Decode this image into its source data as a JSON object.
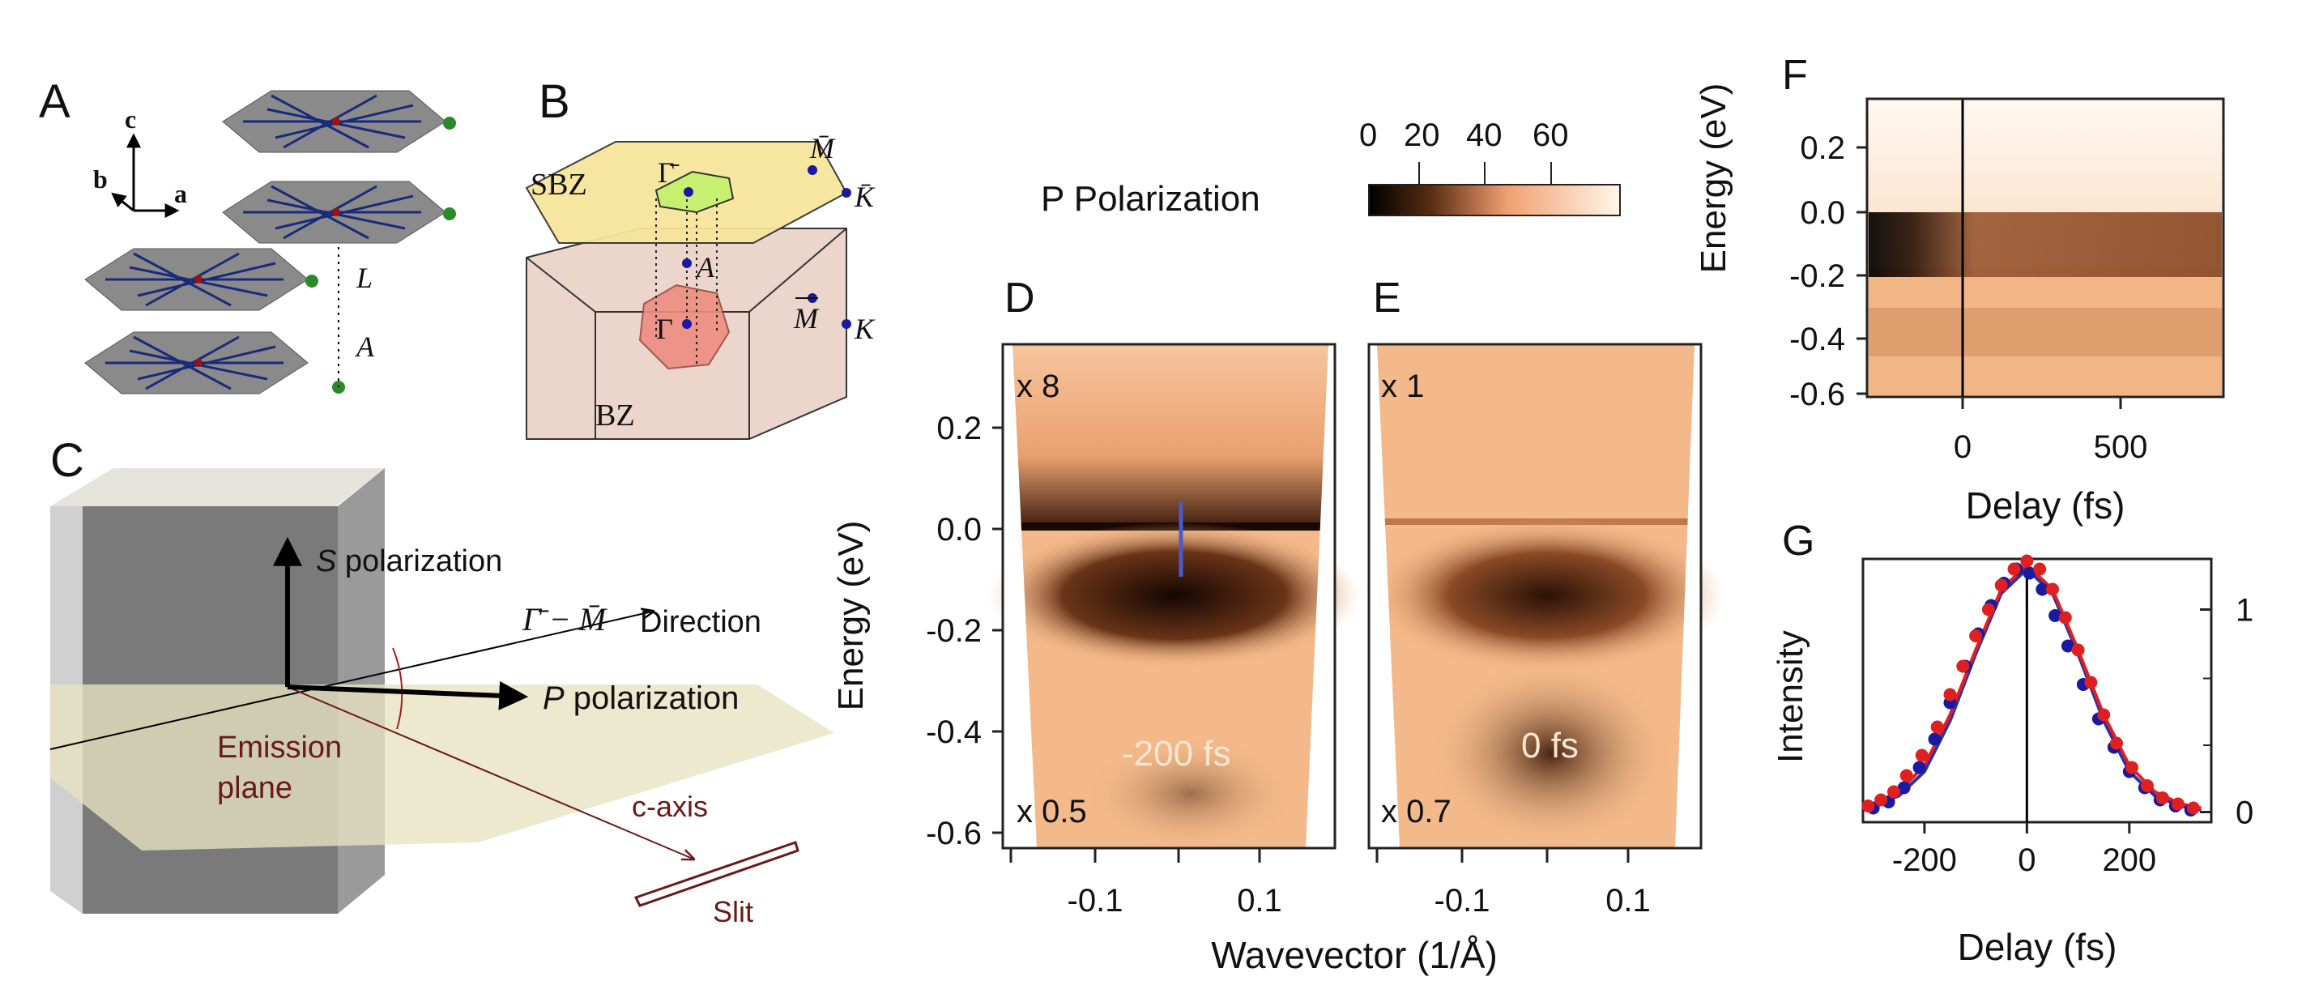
{
  "panel_labels": {
    "a": "A",
    "b": "B",
    "c": "C",
    "d": "D",
    "e": "E",
    "f": "F",
    "g": "G"
  },
  "panel_a": {
    "axis_c": "c",
    "axis_b": "b",
    "axis_a": "a",
    "label_L": "L",
    "label_A": "A"
  },
  "panel_b": {
    "sbz": "SBZ",
    "bz": "BZ",
    "gamma_bar": "Γ̄",
    "m_bar": "M̄",
    "k_bar": "K̄",
    "point_A": "A",
    "point_gamma": "Γ",
    "point_M": "M",
    "point_K": "K"
  },
  "panel_c": {
    "s_pol_italic": "S",
    "s_pol_text": " polarization",
    "p_pol_italic": "P",
    "p_pol_text": " polarization",
    "gamma_m": "Γ̄ − M̄",
    "direction": "Direction",
    "emission_1": "Emission",
    "emission_2": "plane",
    "c_axis": "c-axis",
    "slit": "Slit"
  },
  "colorbar": {
    "title": "P Polarization",
    "ticks": [
      "0",
      "20",
      "40",
      "60"
    ]
  },
  "panel_d": {
    "scale_top": "x 8",
    "scale_bottom": "x 0.5",
    "delay": "-200 fs"
  },
  "panel_e": {
    "scale_top": "x 1",
    "scale_bottom": "x 0.7",
    "delay": "0 fs"
  },
  "de_axes": {
    "ylabel": "Energy (eV)",
    "xlabel": "Wavevector (1/Å)",
    "yticks": [
      "0.2",
      "0.0",
      "-0.2",
      "-0.4",
      "-0.6"
    ],
    "xticks_d": [
      "-0.1",
      "0.1"
    ],
    "xticks_e": [
      "-0.1",
      "0.1"
    ]
  },
  "panel_f": {
    "ylabel": "Energy (eV)",
    "xlabel": "Delay (fs)",
    "yticks": [
      "0.2",
      "0.0",
      "-0.2",
      "-0.4",
      "-0.6"
    ],
    "xticks": [
      "0",
      "500"
    ]
  },
  "panel_g": {
    "ylabel": "Intensity",
    "xlabel": "Delay (fs)",
    "xticks": [
      "-200",
      "0",
      "200"
    ],
    "yticks": [
      "1",
      "0"
    ]
  },
  "chart_data": {
    "type": "scatter",
    "title": "",
    "xlabel": "Delay (fs)",
    "ylabel": "Intensity",
    "xlim": [
      -320,
      360
    ],
    "ylim": [
      -0.05,
      1.25
    ],
    "series": [
      {
        "name": "blue",
        "color": "#1a1aa0",
        "x": [
          -300,
          -270,
          -240,
          -210,
          -180,
          -150,
          -120,
          -95,
          -70,
          -45,
          -20,
          5,
          30,
          55,
          80,
          110,
          140,
          170,
          200,
          230,
          260,
          290,
          320
        ],
        "y": [
          0.02,
          0.05,
          0.12,
          0.22,
          0.36,
          0.54,
          0.72,
          0.88,
          1.02,
          1.13,
          1.2,
          1.18,
          1.1,
          0.97,
          0.82,
          0.63,
          0.46,
          0.32,
          0.2,
          0.12,
          0.06,
          0.03,
          0.01
        ]
      },
      {
        "name": "red",
        "color": "#e02020",
        "x": [
          -310,
          -285,
          -260,
          -235,
          -205,
          -175,
          -150,
          -125,
          -100,
          -75,
          -50,
          -25,
          0,
          25,
          50,
          75,
          100,
          125,
          150,
          175,
          205,
          235,
          265,
          295,
          325
        ],
        "y": [
          0.03,
          0.06,
          0.1,
          0.18,
          0.28,
          0.42,
          0.58,
          0.72,
          0.87,
          1.0,
          1.12,
          1.2,
          1.24,
          1.2,
          1.1,
          0.96,
          0.8,
          0.64,
          0.48,
          0.34,
          0.22,
          0.13,
          0.07,
          0.04,
          0.02
        ]
      },
      {
        "name": "blue-fit",
        "color": "#3030a0",
        "type": "line",
        "x": [
          -300,
          -250,
          -200,
          -150,
          -100,
          -50,
          0,
          50,
          100,
          150,
          200,
          250,
          300,
          340
        ],
        "y": [
          0.03,
          0.08,
          0.2,
          0.45,
          0.78,
          1.08,
          1.2,
          1.08,
          0.78,
          0.45,
          0.2,
          0.08,
          0.03,
          0.01
        ]
      },
      {
        "name": "red-fit",
        "color": "#e02020",
        "type": "line",
        "x": [
          -300,
          -250,
          -200,
          -150,
          -100,
          -50,
          0,
          50,
          100,
          150,
          200,
          250,
          300,
          340
        ],
        "y": [
          0.04,
          0.1,
          0.23,
          0.48,
          0.8,
          1.1,
          1.22,
          1.1,
          0.8,
          0.48,
          0.23,
          0.1,
          0.04,
          0.02
        ]
      }
    ]
  }
}
